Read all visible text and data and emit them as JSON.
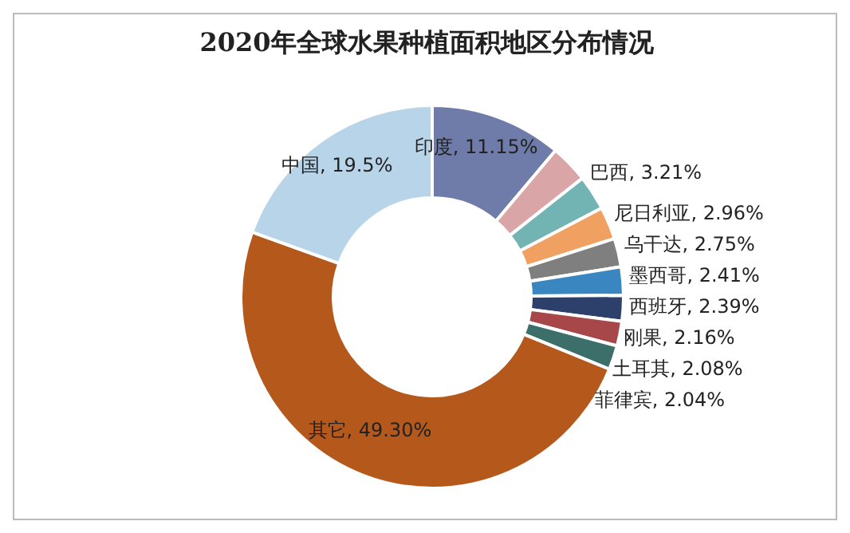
{
  "chart_data": {
    "type": "donut",
    "title": "2020年全球水果种植面积地区分布情况",
    "categories": [
      "印度",
      "巴西",
      "尼日利亚",
      "乌干达",
      "墨西哥",
      "西班牙",
      "刚果",
      "土耳其",
      "菲律宾",
      "其它",
      "中国"
    ],
    "values": [
      11.15,
      3.21,
      2.96,
      2.75,
      2.41,
      2.39,
      2.16,
      2.08,
      2.04,
      49.3,
      19.5
    ],
    "value_labels": [
      "11.15%",
      "3.21%",
      "2.96%",
      "2.75%",
      "2.41%",
      "2.39%",
      "2.16%",
      "2.08%",
      "2.04%",
      "49.30%",
      "19.5%"
    ],
    "colors": [
      "#6f7ba8",
      "#d9a5a7",
      "#72b3b3",
      "#f0a060",
      "#7f7f7f",
      "#3a86c0",
      "#2d3f6b",
      "#a8474a",
      "#3c6f6a",
      "#b5581c",
      "#b8d4e8"
    ]
  }
}
